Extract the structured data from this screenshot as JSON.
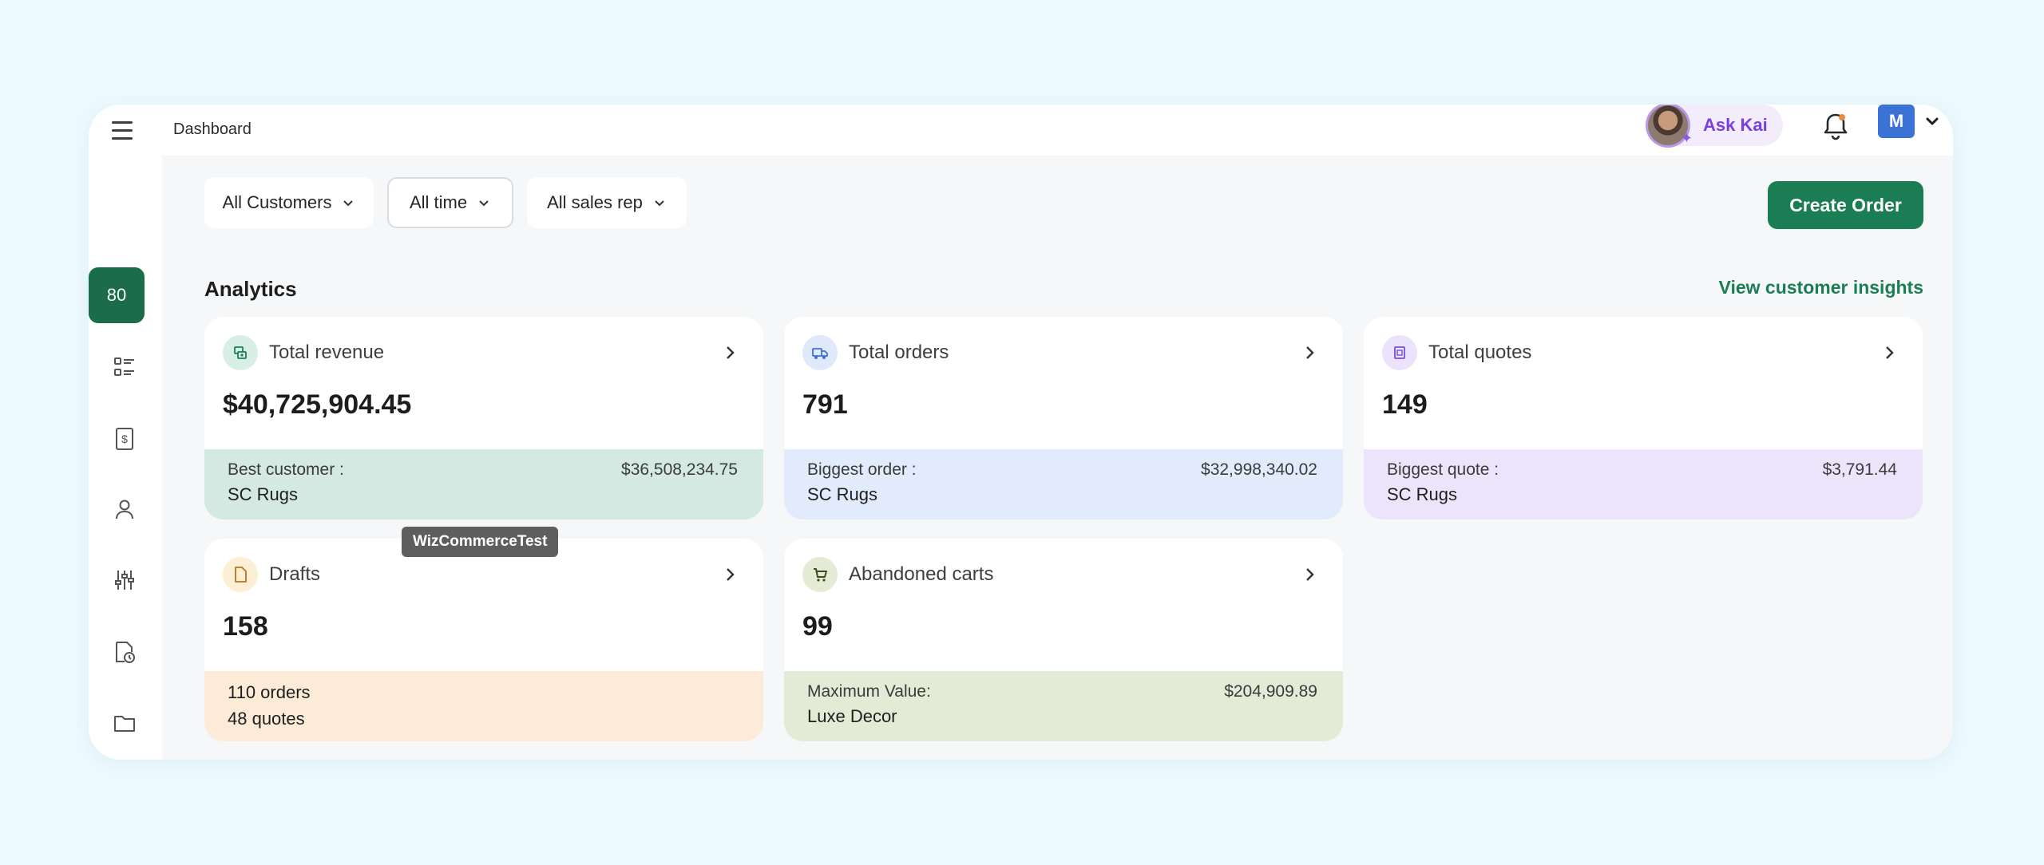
{
  "topbar": {
    "breadcrumb": "Dashboard",
    "ask_kai_label": "Ask Kai",
    "user_initial": "M"
  },
  "sidebar": {
    "items": [
      {
        "icon": "dashboard-icon",
        "active": true
      },
      {
        "icon": "list-icon",
        "active": false
      },
      {
        "icon": "invoice-icon",
        "active": false
      },
      {
        "icon": "user-icon",
        "active": false
      },
      {
        "icon": "sliders-icon",
        "active": false
      },
      {
        "icon": "document-clock-icon",
        "active": false
      },
      {
        "icon": "folder-icon",
        "active": false
      },
      {
        "icon": "user-growth-icon",
        "active": false
      },
      {
        "icon": "tag-icon",
        "active": false
      }
    ]
  },
  "filters": {
    "customers": "All Customers",
    "time": "All time",
    "sales_rep": "All sales rep"
  },
  "actions": {
    "create_order": "Create Order",
    "view_insights": "View customer insights"
  },
  "analytics": {
    "title": "Analytics",
    "cards": [
      {
        "label": "Total revenue",
        "value": "$40,725,904.45",
        "foot_label": "Best customer :",
        "foot_value": "$36,508,234.75",
        "foot_sub": "SC Rugs",
        "color": "#d3e9e1",
        "icon_bg": "#d7efe5",
        "icon_color": "#1b7d54",
        "icon": "money-icon"
      },
      {
        "label": "Total orders",
        "value": "791",
        "foot_label": "Biggest order :",
        "foot_value": "$32,998,340.02",
        "foot_sub": "SC Rugs",
        "color": "#e1ebfb",
        "icon_bg": "#dfe9fb",
        "icon_color": "#3b72d6",
        "icon": "truck-icon"
      },
      {
        "label": "Total quotes",
        "value": "149",
        "foot_label": "Biggest quote :",
        "foot_value": "$3,791.44",
        "foot_sub": "SC Rugs",
        "color": "#ece4fb",
        "icon_bg": "#ebe2fb",
        "icon_color": "#7a4fd6",
        "icon": "quote-icon"
      },
      {
        "label": "Drafts",
        "value": "158",
        "foot_line1": "110 orders",
        "foot_line2": "48 quotes",
        "color": "#fcecd7",
        "icon_bg": "#fdeed6",
        "icon_color": "#b8741a",
        "icon": "draft-icon"
      },
      {
        "label": "Abandoned carts",
        "value": "99",
        "foot_label": "Maximum Value:",
        "foot_value": "$204,909.89",
        "foot_sub": "Luxe Decor",
        "color": "#e3ebd6",
        "icon_bg": "#e4ecd5",
        "icon_color": "#3f4a1d",
        "icon": "cart-icon"
      }
    ]
  },
  "tooltip": "WizCommerceTest"
}
